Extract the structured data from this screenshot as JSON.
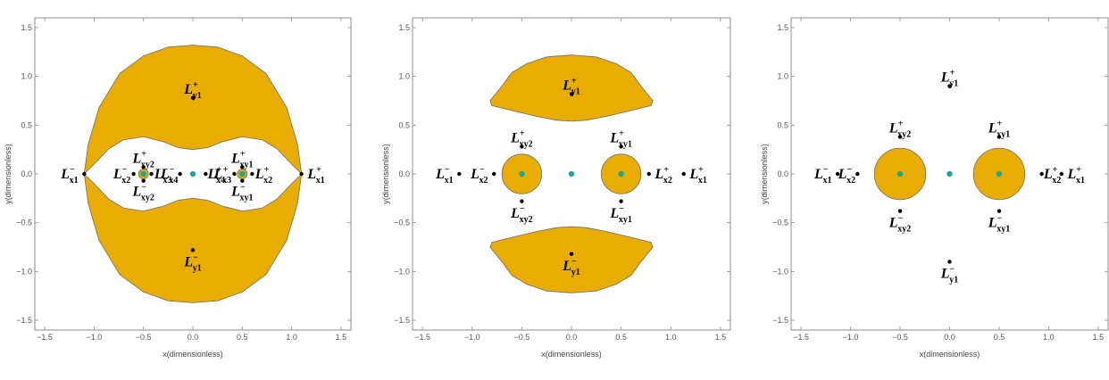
{
  "chart_data": [
    {
      "type": "region-plot",
      "xlabel": "x(dimensionless)",
      "ylabel": "y(dimensionless)",
      "xlim": [
        -1.6,
        1.6
      ],
      "ylim": [
        -1.6,
        1.6
      ],
      "xticks": [
        -1.5,
        -1.0,
        -0.5,
        0.0,
        0.5,
        1.0,
        1.5
      ],
      "yticks": [
        -1.5,
        -1.0,
        -0.5,
        0.0,
        0.5,
        1.0,
        1.5
      ],
      "fill_color": "#e8ad00",
      "primaries": [
        [
          -0.5,
          0
        ],
        [
          0,
          0
        ],
        [
          0.5,
          0
        ]
      ],
      "regions": [
        {
          "kind": "outer",
          "outline": [
            [
              -1.1,
              0
            ],
            [
              -1.06,
              0.3
            ],
            [
              -0.95,
              0.68
            ],
            [
              -0.74,
              1.03
            ],
            [
              -0.5,
              1.21
            ],
            [
              -0.25,
              1.3
            ],
            [
              0,
              1.32
            ],
            [
              0.25,
              1.3
            ],
            [
              0.5,
              1.21
            ],
            [
              0.74,
              1.03
            ],
            [
              0.95,
              0.68
            ],
            [
              1.06,
              0.3
            ],
            [
              1.1,
              0
            ],
            [
              1.06,
              -0.3
            ],
            [
              0.95,
              -0.68
            ],
            [
              0.74,
              -1.03
            ],
            [
              0.5,
              -1.21
            ],
            [
              0.25,
              -1.3
            ],
            [
              0,
              -1.32
            ],
            [
              -0.25,
              -1.3
            ],
            [
              -0.5,
              -1.21
            ],
            [
              -0.74,
              -1.03
            ],
            [
              -0.95,
              -0.68
            ],
            [
              -1.06,
              -0.3
            ]
          ],
          "hole": [
            [
              -1.1,
              0
            ],
            [
              -1.0,
              0.1
            ],
            [
              -0.85,
              0.26
            ],
            [
              -0.7,
              0.35
            ],
            [
              -0.5,
              0.38
            ],
            [
              -0.3,
              0.33
            ],
            [
              -0.15,
              0.27
            ],
            [
              0,
              0.25
            ],
            [
              0.15,
              0.27
            ],
            [
              0.3,
              0.33
            ],
            [
              0.5,
              0.38
            ],
            [
              0.7,
              0.35
            ],
            [
              0.85,
              0.26
            ],
            [
              1.0,
              0.1
            ],
            [
              1.1,
              0
            ],
            [
              1.0,
              -0.1
            ],
            [
              0.85,
              -0.26
            ],
            [
              0.7,
              -0.35
            ],
            [
              0.5,
              -0.38
            ],
            [
              0.3,
              -0.33
            ],
            [
              0.15,
              -0.27
            ],
            [
              0,
              -0.25
            ],
            [
              -0.15,
              -0.27
            ],
            [
              -0.3,
              -0.33
            ],
            [
              -0.5,
              -0.38
            ],
            [
              -0.7,
              -0.35
            ],
            [
              -0.85,
              -0.26
            ],
            [
              -1.0,
              -0.1
            ]
          ]
        },
        {
          "kind": "circle",
          "center": [
            -0.5,
            0
          ],
          "r": 0.05
        },
        {
          "kind": "circle",
          "center": [
            0.5,
            0
          ],
          "r": 0.05
        }
      ],
      "points": [
        {
          "name": "L",
          "sub": "y1",
          "sup": "+",
          "x": 0.0,
          "y": 0.78,
          "label_dx": 0.0,
          "label_dy": 0.09,
          "anchor": "middle"
        },
        {
          "name": "L",
          "sub": "y1",
          "sup": "−",
          "x": 0.0,
          "y": -0.78,
          "label_dx": 0.0,
          "label_dy": -0.12,
          "anchor": "middle"
        },
        {
          "name": "L",
          "sub": "x1",
          "sup": "−",
          "x": -1.1,
          "y": 0.0,
          "label_dx": -0.06,
          "label_dy": 0.0,
          "anchor": "end"
        },
        {
          "name": "L",
          "sub": "x1",
          "sup": "+",
          "x": 1.1,
          "y": 0.0,
          "label_dx": 0.06,
          "label_dy": 0.0,
          "anchor": "start"
        },
        {
          "name": "L",
          "sub": "x2",
          "sup": "−",
          "x": -0.6,
          "y": 0.0,
          "label_dx": -0.03,
          "label_dy": 0.0,
          "anchor": "end"
        },
        {
          "name": "L",
          "sub": "x2",
          "sup": "+",
          "x": 0.6,
          "y": 0.0,
          "label_dx": 0.03,
          "label_dy": 0.0,
          "anchor": "start"
        },
        {
          "name": "L",
          "sub": "x3",
          "sup": "−",
          "x": -0.42,
          "y": 0.0,
          "label_dx": 0.03,
          "label_dy": 0.0,
          "anchor": "start"
        },
        {
          "name": "L",
          "sub": "x3",
          "sup": "+",
          "x": 0.42,
          "y": 0.0,
          "label_dx": -0.03,
          "label_dy": 0.0,
          "anchor": "end"
        },
        {
          "name": "L",
          "sub": "x4",
          "sup": "−",
          "x": -0.13,
          "y": 0.0,
          "label_dx": -0.02,
          "label_dy": 0.0,
          "anchor": "end"
        },
        {
          "name": "L",
          "sub": "x4",
          "sup": "+",
          "x": 0.13,
          "y": 0.0,
          "label_dx": 0.02,
          "label_dy": 0.0,
          "anchor": "start"
        },
        {
          "name": "L",
          "sub": "xy2",
          "sup": "+",
          "x": -0.5,
          "y": 0.07,
          "label_dx": 0.0,
          "label_dy": 0.09,
          "anchor": "middle"
        },
        {
          "name": "L",
          "sub": "xy2",
          "sup": "−",
          "x": -0.5,
          "y": -0.07,
          "label_dx": 0.0,
          "label_dy": -0.11,
          "anchor": "middle"
        },
        {
          "name": "L",
          "sub": "xy1",
          "sup": "+",
          "x": 0.5,
          "y": 0.07,
          "label_dx": 0.0,
          "label_dy": 0.09,
          "anchor": "middle"
        },
        {
          "name": "L",
          "sub": "xy1",
          "sup": "−",
          "x": 0.5,
          "y": -0.07,
          "label_dx": 0.0,
          "label_dy": -0.11,
          "anchor": "middle"
        }
      ]
    },
    {
      "type": "region-plot",
      "xlabel": "x(dimensionless)",
      "ylabel": "y(dimensionless)",
      "xlim": [
        -1.6,
        1.6
      ],
      "ylim": [
        -1.6,
        1.6
      ],
      "xticks": [
        -1.5,
        -1.0,
        -0.5,
        0.0,
        0.5,
        1.0,
        1.5
      ],
      "yticks": [
        -1.5,
        -1.0,
        -0.5,
        0.0,
        0.5,
        1.0,
        1.5
      ],
      "fill_color": "#e8ad00",
      "primaries": [
        [
          -0.5,
          0
        ],
        [
          0,
          0
        ],
        [
          0.5,
          0
        ]
      ],
      "regions": [
        {
          "kind": "blob",
          "outline": [
            [
              -0.7,
              0.9
            ],
            [
              -0.6,
              1.04
            ],
            [
              -0.45,
              1.13
            ],
            [
              -0.25,
              1.2
            ],
            [
              0,
              1.22
            ],
            [
              0.25,
              1.2
            ],
            [
              0.45,
              1.13
            ],
            [
              0.6,
              1.04
            ],
            [
              0.7,
              0.9
            ],
            [
              0.82,
              0.75
            ],
            [
              0.8,
              0.7
            ],
            [
              0.6,
              0.65
            ],
            [
              0.35,
              0.59
            ],
            [
              0.15,
              0.55
            ],
            [
              0,
              0.54
            ],
            [
              -0.15,
              0.55
            ],
            [
              -0.35,
              0.59
            ],
            [
              -0.6,
              0.65
            ],
            [
              -0.8,
              0.7
            ],
            [
              -0.82,
              0.75
            ]
          ]
        },
        {
          "kind": "blob",
          "outline": [
            [
              -0.7,
              -0.9
            ],
            [
              -0.6,
              -1.04
            ],
            [
              -0.45,
              -1.13
            ],
            [
              -0.25,
              -1.2
            ],
            [
              0,
              -1.22
            ],
            [
              0.25,
              -1.2
            ],
            [
              0.45,
              -1.13
            ],
            [
              0.6,
              -1.04
            ],
            [
              0.7,
              -0.9
            ],
            [
              0.82,
              -0.75
            ],
            [
              0.8,
              -0.7
            ],
            [
              0.6,
              -0.65
            ],
            [
              0.35,
              -0.59
            ],
            [
              0.15,
              -0.55
            ],
            [
              0,
              -0.54
            ],
            [
              -0.15,
              -0.55
            ],
            [
              -0.35,
              -0.59
            ],
            [
              -0.6,
              -0.65
            ],
            [
              -0.8,
              -0.7
            ],
            [
              -0.82,
              -0.75
            ]
          ]
        },
        {
          "kind": "circle",
          "center": [
            -0.5,
            0
          ],
          "r": 0.2
        },
        {
          "kind": "circle",
          "center": [
            0.5,
            0
          ],
          "r": 0.2
        }
      ],
      "points": [
        {
          "name": "L",
          "sub": "y1",
          "sup": "+",
          "x": 0.0,
          "y": 0.82,
          "label_dx": 0.0,
          "label_dy": 0.09,
          "anchor": "middle"
        },
        {
          "name": "L",
          "sub": "y1",
          "sup": "−",
          "x": 0.0,
          "y": -0.82,
          "label_dx": 0.0,
          "label_dy": -0.12,
          "anchor": "middle"
        },
        {
          "name": "L",
          "sub": "xy2",
          "sup": "+",
          "x": -0.5,
          "y": 0.28,
          "label_dx": 0.0,
          "label_dy": 0.09,
          "anchor": "middle"
        },
        {
          "name": "L",
          "sub": "xy2",
          "sup": "−",
          "x": -0.5,
          "y": -0.28,
          "label_dx": 0.0,
          "label_dy": -0.12,
          "anchor": "middle"
        },
        {
          "name": "L",
          "sub": "xy1",
          "sup": "+",
          "x": 0.5,
          "y": 0.28,
          "label_dx": 0.0,
          "label_dy": 0.09,
          "anchor": "middle"
        },
        {
          "name": "L",
          "sub": "xy1",
          "sup": "−",
          "x": 0.5,
          "y": -0.28,
          "label_dx": 0.0,
          "label_dy": -0.12,
          "anchor": "middle"
        },
        {
          "name": "L",
          "sub": "x1",
          "sup": "−",
          "x": -1.13,
          "y": 0.0,
          "label_dx": -0.06,
          "label_dy": 0.0,
          "anchor": "end"
        },
        {
          "name": "L",
          "sub": "x1",
          "sup": "+",
          "x": 1.13,
          "y": 0.0,
          "label_dx": 0.06,
          "label_dy": 0.0,
          "anchor": "start"
        },
        {
          "name": "L",
          "sub": "x2",
          "sup": "−",
          "x": -0.78,
          "y": 0.0,
          "label_dx": -0.06,
          "label_dy": 0.0,
          "anchor": "end"
        },
        {
          "name": "L",
          "sub": "x2",
          "sup": "+",
          "x": 0.78,
          "y": 0.0,
          "label_dx": 0.06,
          "label_dy": 0.0,
          "anchor": "start"
        }
      ]
    },
    {
      "type": "region-plot",
      "xlabel": "x(dimensionless)",
      "ylabel": "y(dimensionless)",
      "xlim": [
        -1.6,
        1.6
      ],
      "ylim": [
        -1.6,
        1.6
      ],
      "xticks": [
        -1.5,
        -1.0,
        -0.5,
        0.0,
        0.5,
        1.0,
        1.5
      ],
      "yticks": [
        -1.5,
        -1.0,
        -0.5,
        0.0,
        0.5,
        1.0,
        1.5
      ],
      "fill_color": "#e8ad00",
      "primaries": [
        [
          -0.5,
          0
        ],
        [
          0,
          0
        ],
        [
          0.5,
          0
        ]
      ],
      "regions": [
        {
          "kind": "circle",
          "center": [
            -0.5,
            0
          ],
          "r": 0.26
        },
        {
          "kind": "circle",
          "center": [
            0.5,
            0
          ],
          "r": 0.26
        }
      ],
      "points": [
        {
          "name": "L",
          "sub": "y1",
          "sup": "+",
          "x": 0.0,
          "y": 0.9,
          "label_dx": 0.0,
          "label_dy": 0.09,
          "anchor": "middle"
        },
        {
          "name": "L",
          "sub": "y1",
          "sup": "−",
          "x": 0.0,
          "y": -0.9,
          "label_dx": 0.0,
          "label_dy": -0.12,
          "anchor": "middle"
        },
        {
          "name": "L",
          "sub": "xy2",
          "sup": "+",
          "x": -0.5,
          "y": 0.38,
          "label_dx": 0.0,
          "label_dy": 0.09,
          "anchor": "middle"
        },
        {
          "name": "L",
          "sub": "xy2",
          "sup": "−",
          "x": -0.5,
          "y": -0.38,
          "label_dx": 0.0,
          "label_dy": -0.12,
          "anchor": "middle"
        },
        {
          "name": "L",
          "sub": "xy1",
          "sup": "+",
          "x": 0.5,
          "y": 0.38,
          "label_dx": 0.0,
          "label_dy": 0.09,
          "anchor": "middle"
        },
        {
          "name": "L",
          "sub": "xy1",
          "sup": "−",
          "x": 0.5,
          "y": -0.38,
          "label_dx": 0.0,
          "label_dy": -0.12,
          "anchor": "middle"
        },
        {
          "name": "L",
          "sub": "x1",
          "sup": "−",
          "x": -1.13,
          "y": 0.0,
          "label_dx": -0.06,
          "label_dy": 0.0,
          "anchor": "end"
        },
        {
          "name": "L",
          "sub": "x1",
          "sup": "+",
          "x": 1.13,
          "y": 0.0,
          "label_dx": 0.06,
          "label_dy": 0.0,
          "anchor": "start"
        },
        {
          "name": "L",
          "sub": "x2",
          "sup": "−",
          "x": -0.93,
          "y": 0.0,
          "label_dx": -0.02,
          "label_dy": 0.0,
          "anchor": "end"
        },
        {
          "name": "L",
          "sub": "x2",
          "sup": "+",
          "x": 0.93,
          "y": 0.0,
          "label_dx": 0.02,
          "label_dy": 0.0,
          "anchor": "start"
        }
      ]
    }
  ]
}
